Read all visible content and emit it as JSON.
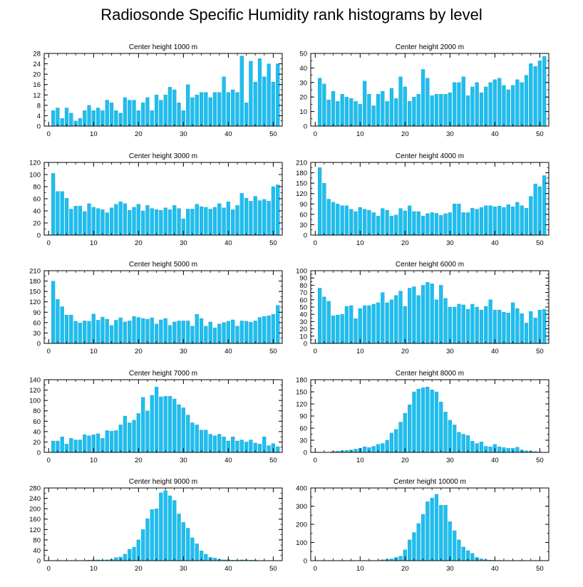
{
  "title": "Radiosonde Specific Humidity rank histograms by level",
  "colors": {
    "bar": "#1cbff0",
    "bar_edge": "#0f8fb8",
    "axis": "#000000"
  },
  "chart_data": [
    {
      "type": "bar",
      "title": "Center height 1000 m",
      "xlim": [
        -1,
        52
      ],
      "xticks": [
        0,
        10,
        20,
        30,
        40,
        50
      ],
      "ylim": [
        0,
        28
      ],
      "yticks": [
        0,
        4,
        8,
        12,
        16,
        20,
        24,
        28
      ],
      "x": [
        1,
        2,
        3,
        4,
        5,
        6,
        7,
        8,
        9,
        10,
        11,
        12,
        13,
        14,
        15,
        16,
        17,
        18,
        19,
        20,
        21,
        22,
        23,
        24,
        25,
        26,
        27,
        28,
        29,
        30,
        31,
        32,
        33,
        34,
        35,
        36,
        37,
        38,
        39,
        40,
        41,
        42,
        43,
        44,
        45,
        46,
        47,
        48,
        49,
        50,
        51
      ],
      "values": [
        6,
        7,
        3,
        7,
        5,
        2,
        3,
        6,
        8,
        6,
        7,
        6,
        10,
        9,
        6,
        5,
        11,
        10,
        10,
        6,
        9,
        11,
        6,
        12,
        10,
        12,
        15,
        14,
        9,
        6,
        16,
        11,
        12,
        13,
        13,
        11,
        13,
        13,
        19,
        13,
        14,
        13,
        27,
        9,
        25,
        17,
        26,
        19,
        24,
        17,
        24
      ]
    },
    {
      "type": "bar",
      "title": "Center height 2000 m",
      "xlim": [
        -1,
        52
      ],
      "xticks": [
        0,
        10,
        20,
        30,
        40,
        50
      ],
      "ylim": [
        0,
        50
      ],
      "yticks": [
        0,
        10,
        20,
        30,
        40,
        50
      ],
      "x": [
        1,
        2,
        3,
        4,
        5,
        6,
        7,
        8,
        9,
        10,
        11,
        12,
        13,
        14,
        15,
        16,
        17,
        18,
        19,
        20,
        21,
        22,
        23,
        24,
        25,
        26,
        27,
        28,
        29,
        30,
        31,
        32,
        33,
        34,
        35,
        36,
        37,
        38,
        39,
        40,
        41,
        42,
        43,
        44,
        45,
        46,
        47,
        48,
        49,
        50,
        51
      ],
      "values": [
        33,
        29,
        18,
        24,
        17,
        22,
        20,
        19,
        17,
        15,
        31,
        22,
        14,
        22,
        24,
        17,
        26,
        19,
        34,
        27,
        17,
        20,
        22,
        39,
        33,
        21,
        22,
        22,
        22,
        23,
        30,
        30,
        34,
        21,
        27,
        30,
        23,
        27,
        30,
        32,
        33,
        28,
        25,
        28,
        32,
        30,
        35,
        43,
        41,
        45,
        48
      ]
    },
    {
      "type": "bar",
      "title": "Center height 3000 m",
      "xlim": [
        -1,
        52
      ],
      "xticks": [
        0,
        10,
        20,
        30,
        40,
        50
      ],
      "ylim": [
        0,
        120
      ],
      "yticks": [
        0,
        20,
        40,
        60,
        80,
        100,
        120
      ],
      "x": [
        1,
        2,
        3,
        4,
        5,
        6,
        7,
        8,
        9,
        10,
        11,
        12,
        13,
        14,
        15,
        16,
        17,
        18,
        19,
        20,
        21,
        22,
        23,
        24,
        25,
        26,
        27,
        28,
        29,
        30,
        31,
        32,
        33,
        34,
        35,
        36,
        37,
        38,
        39,
        40,
        41,
        42,
        43,
        44,
        45,
        46,
        47,
        48,
        49,
        50,
        51
      ],
      "values": [
        102,
        72,
        72,
        61,
        43,
        48,
        48,
        39,
        52,
        46,
        44,
        42,
        37,
        45,
        51,
        55,
        52,
        41,
        46,
        51,
        40,
        49,
        44,
        42,
        41,
        45,
        42,
        49,
        44,
        27,
        43,
        43,
        51,
        47,
        46,
        43,
        46,
        52,
        45,
        55,
        42,
        49,
        69,
        61,
        56,
        64,
        57,
        59,
        56,
        80,
        83
      ]
    },
    {
      "type": "bar",
      "title": "Center height 4000 m",
      "xlim": [
        -1,
        52
      ],
      "xticks": [
        0,
        10,
        20,
        30,
        40,
        50
      ],
      "ylim": [
        0,
        210
      ],
      "yticks": [
        0,
        30,
        60,
        90,
        120,
        150,
        180,
        210
      ],
      "x": [
        1,
        2,
        3,
        4,
        5,
        6,
        7,
        8,
        9,
        10,
        11,
        12,
        13,
        14,
        15,
        16,
        17,
        18,
        19,
        20,
        21,
        22,
        23,
        24,
        25,
        26,
        27,
        28,
        29,
        30,
        31,
        32,
        33,
        34,
        35,
        36,
        37,
        38,
        39,
        40,
        41,
        42,
        43,
        44,
        45,
        46,
        47,
        48,
        49,
        50,
        51
      ],
      "values": [
        195,
        150,
        104,
        95,
        90,
        85,
        85,
        75,
        68,
        80,
        75,
        72,
        65,
        55,
        77,
        72,
        55,
        58,
        77,
        70,
        85,
        68,
        68,
        55,
        62,
        65,
        63,
        57,
        62,
        65,
        90,
        90,
        65,
        65,
        78,
        75,
        80,
        85,
        85,
        82,
        84,
        80,
        88,
        82,
        95,
        85,
        78,
        112,
        148,
        140,
        172
      ]
    },
    {
      "type": "bar",
      "title": "Center height 5000 m",
      "xlim": [
        -1,
        52
      ],
      "xticks": [
        0,
        10,
        20,
        30,
        40,
        50
      ],
      "ylim": [
        0,
        210
      ],
      "yticks": [
        0,
        30,
        60,
        90,
        120,
        150,
        180,
        210
      ],
      "x": [
        1,
        2,
        3,
        4,
        5,
        6,
        7,
        8,
        9,
        10,
        11,
        12,
        13,
        14,
        15,
        16,
        17,
        18,
        19,
        20,
        21,
        22,
        23,
        24,
        25,
        26,
        27,
        28,
        29,
        30,
        31,
        32,
        33,
        34,
        35,
        36,
        37,
        38,
        39,
        40,
        41,
        42,
        43,
        44,
        45,
        46,
        47,
        48,
        49,
        50,
        51
      ],
      "values": [
        180,
        127,
        106,
        82,
        82,
        64,
        59,
        65,
        64,
        85,
        67,
        76,
        70,
        52,
        67,
        74,
        62,
        65,
        78,
        75,
        72,
        70,
        74,
        56,
        68,
        72,
        52,
        62,
        65,
        65,
        65,
        50,
        84,
        72,
        50,
        62,
        45,
        56,
        60,
        64,
        68,
        50,
        65,
        64,
        61,
        65,
        75,
        78,
        80,
        84,
        110
      ]
    },
    {
      "type": "bar",
      "title": "Center height 6000 m",
      "xlim": [
        -1,
        52
      ],
      "xticks": [
        0,
        10,
        20,
        30,
        40,
        50
      ],
      "ylim": [
        0,
        100
      ],
      "yticks": [
        0,
        10,
        20,
        30,
        40,
        50,
        60,
        70,
        80,
        90,
        100
      ],
      "x": [
        1,
        2,
        3,
        4,
        5,
        6,
        7,
        8,
        9,
        10,
        11,
        12,
        13,
        14,
        15,
        16,
        17,
        18,
        19,
        20,
        21,
        22,
        23,
        24,
        25,
        26,
        27,
        28,
        29,
        30,
        31,
        32,
        33,
        34,
        35,
        36,
        37,
        38,
        39,
        40,
        41,
        42,
        43,
        44,
        45,
        46,
        47,
        48,
        49,
        50,
        51
      ],
      "values": [
        76,
        64,
        58,
        38,
        39,
        40,
        51,
        52,
        34,
        48,
        52,
        52,
        54,
        56,
        70,
        56,
        60,
        66,
        72,
        51,
        76,
        78,
        66,
        80,
        84,
        82,
        60,
        80,
        62,
        50,
        50,
        54,
        53,
        47,
        54,
        50,
        46,
        51,
        60,
        46,
        46,
        43,
        42,
        56,
        48,
        41,
        28,
        44,
        35,
        46,
        47
      ]
    },
    {
      "type": "bar",
      "title": "Center height 7000 m",
      "xlim": [
        -1,
        52
      ],
      "xticks": [
        0,
        10,
        20,
        30,
        40,
        50
      ],
      "ylim": [
        0,
        140
      ],
      "yticks": [
        0,
        20,
        40,
        60,
        80,
        100,
        120,
        140
      ],
      "x": [
        1,
        2,
        3,
        4,
        5,
        6,
        7,
        8,
        9,
        10,
        11,
        12,
        13,
        14,
        15,
        16,
        17,
        18,
        19,
        20,
        21,
        22,
        23,
        24,
        25,
        26,
        27,
        28,
        29,
        30,
        31,
        32,
        33,
        34,
        35,
        36,
        37,
        38,
        39,
        40,
        41,
        42,
        43,
        44,
        45,
        46,
        47,
        48,
        49,
        50,
        51
      ],
      "values": [
        22,
        22,
        30,
        16,
        27,
        24,
        24,
        34,
        32,
        34,
        36,
        27,
        42,
        41,
        42,
        53,
        70,
        57,
        62,
        75,
        106,
        80,
        110,
        126,
        107,
        108,
        108,
        103,
        92,
        86,
        72,
        57,
        53,
        43,
        43,
        35,
        32,
        35,
        30,
        22,
        30,
        22,
        24,
        20,
        24,
        18,
        16,
        30,
        13,
        17,
        11
      ]
    },
    {
      "type": "bar",
      "title": "Center height 8000 m",
      "xlim": [
        -1,
        52
      ],
      "xticks": [
        0,
        10,
        20,
        30,
        40,
        50
      ],
      "ylim": [
        0,
        180
      ],
      "yticks": [
        0,
        30,
        60,
        90,
        120,
        150,
        180
      ],
      "x": [
        1,
        2,
        3,
        4,
        5,
        6,
        7,
        8,
        9,
        10,
        11,
        12,
        13,
        14,
        15,
        16,
        17,
        18,
        19,
        20,
        21,
        22,
        23,
        24,
        25,
        26,
        27,
        28,
        29,
        30,
        31,
        32,
        33,
        34,
        35,
        36,
        37,
        38,
        39,
        40,
        41,
        42,
        43,
        44,
        45,
        46,
        47,
        48,
        49,
        50,
        51
      ],
      "values": [
        0,
        0,
        0,
        2,
        3,
        4,
        5,
        6,
        8,
        10,
        14,
        12,
        15,
        20,
        22,
        30,
        48,
        57,
        75,
        97,
        118,
        150,
        157,
        160,
        162,
        155,
        150,
        125,
        100,
        80,
        68,
        50,
        45,
        42,
        28,
        22,
        26,
        15,
        14,
        20,
        14,
        12,
        10,
        10,
        13,
        6,
        4,
        3,
        2,
        1,
        0
      ]
    },
    {
      "type": "bar",
      "title": "Center height 9000 m",
      "xlim": [
        -1,
        52
      ],
      "xticks": [
        0,
        10,
        20,
        30,
        40,
        50
      ],
      "ylim": [
        0,
        280
      ],
      "yticks": [
        0,
        40,
        80,
        120,
        160,
        200,
        240,
        280
      ],
      "x": [
        1,
        2,
        3,
        4,
        5,
        6,
        7,
        8,
        9,
        10,
        11,
        12,
        13,
        14,
        15,
        16,
        17,
        18,
        19,
        20,
        21,
        22,
        23,
        24,
        25,
        26,
        27,
        28,
        29,
        30,
        31,
        32,
        33,
        34,
        35,
        36,
        37,
        38,
        39,
        40,
        41,
        42,
        43,
        44,
        45,
        46,
        47,
        48,
        49,
        50,
        51
      ],
      "values": [
        0,
        0,
        0,
        0,
        0,
        0,
        0,
        0,
        2,
        3,
        3,
        2,
        3,
        5,
        12,
        14,
        25,
        44,
        52,
        80,
        120,
        162,
        197,
        200,
        262,
        270,
        250,
        232,
        180,
        148,
        125,
        88,
        65,
        38,
        25,
        13,
        10,
        5,
        3,
        4,
        2,
        2,
        3,
        3,
        2,
        2,
        1,
        1,
        0,
        0,
        0
      ]
    },
    {
      "type": "bar",
      "title": "Center height 10000 m",
      "xlim": [
        -1,
        52
      ],
      "xticks": [
        0,
        10,
        20,
        30,
        40,
        50
      ],
      "ylim": [
        0,
        400
      ],
      "yticks": [
        0,
        100,
        200,
        300,
        400
      ],
      "x": [
        1,
        2,
        3,
        4,
        5,
        6,
        7,
        8,
        9,
        10,
        11,
        12,
        13,
        14,
        15,
        16,
        17,
        18,
        19,
        20,
        21,
        22,
        23,
        24,
        25,
        26,
        27,
        28,
        29,
        30,
        31,
        32,
        33,
        34,
        35,
        36,
        37,
        38,
        39,
        40,
        41,
        42,
        43,
        44,
        45,
        46,
        47,
        48,
        49,
        50,
        51
      ],
      "values": [
        0,
        0,
        0,
        0,
        0,
        0,
        0,
        0,
        0,
        0,
        0,
        0,
        0,
        0,
        5,
        7,
        10,
        18,
        25,
        60,
        115,
        155,
        205,
        255,
        325,
        345,
        365,
        305,
        305,
        215,
        165,
        115,
        75,
        55,
        40,
        18,
        10,
        5,
        3,
        2,
        2,
        1,
        1,
        0,
        0,
        0,
        0,
        0,
        0,
        0,
        0
      ]
    }
  ]
}
